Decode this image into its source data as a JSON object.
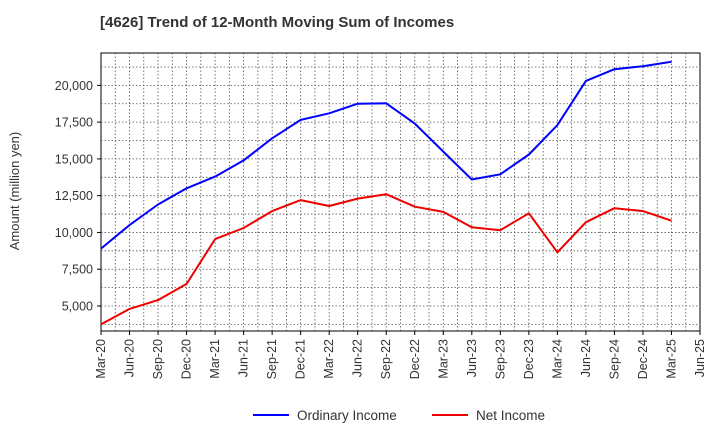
{
  "chart_data": {
    "type": "line",
    "title": "[4626]  Trend of 12-Month Moving Sum of Incomes",
    "xlabel": "",
    "ylabel": "Amount (million yen)",
    "ylim": [
      3300,
      22200
    ],
    "yticks": [
      5000,
      7500,
      10000,
      12500,
      15000,
      17500,
      20000
    ],
    "ytick_labels": [
      "5,000",
      "7,500",
      "10,000",
      "12,500",
      "15,000",
      "17,500",
      "20,000"
    ],
    "categories": [
      "Mar-20",
      "Jun-20",
      "Sep-20",
      "Dec-20",
      "Mar-21",
      "Jun-21",
      "Sep-21",
      "Dec-21",
      "Mar-22",
      "Jun-22",
      "Sep-22",
      "Dec-22",
      "Mar-23",
      "Jun-23",
      "Sep-23",
      "Dec-23",
      "Mar-24",
      "Jun-24",
      "Sep-24",
      "Dec-24",
      "Mar-25",
      "Jun-25"
    ],
    "grid": true,
    "legend_position": "bottom-center",
    "series": [
      {
        "name": "Ordinary Income",
        "color": "#0000ff",
        "values": [
          8900,
          10500,
          11900,
          13000,
          13800,
          14900,
          16400,
          17650,
          18100,
          18750,
          18780,
          17400,
          15500,
          13600,
          13950,
          15300,
          17300,
          20300,
          21100,
          21300,
          21600,
          null
        ]
      },
      {
        "name": "Net Income",
        "color": "#ee0000",
        "values": [
          3750,
          4800,
          5400,
          6500,
          9550,
          10300,
          11450,
          12200,
          11800,
          12300,
          12600,
          11750,
          11400,
          10350,
          10150,
          11300,
          8650,
          10700,
          11650,
          11450,
          10800,
          null
        ]
      }
    ]
  }
}
